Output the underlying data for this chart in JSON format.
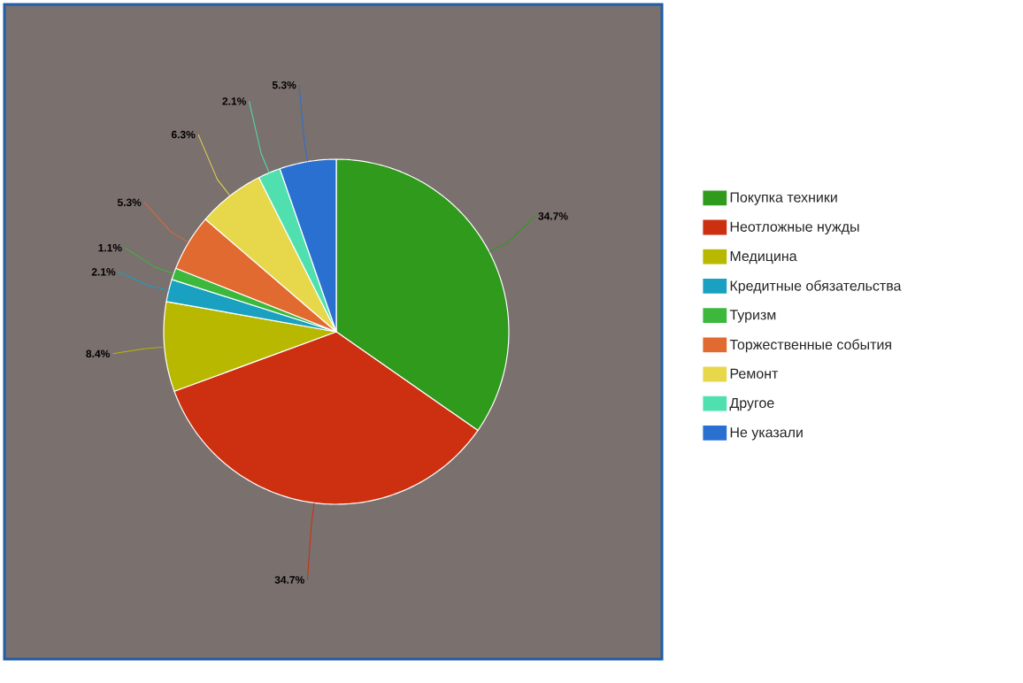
{
  "chart_data": {
    "type": "pie",
    "categories": [
      "Покупка техники",
      "Неотложные нужды",
      "Медицина",
      "Кредитные обязательства",
      "Туризм",
      "Торжественные события",
      "Ремонт",
      "Другое",
      "Не указали"
    ],
    "values": [
      34.7,
      34.7,
      8.4,
      2.1,
      1.1,
      5.3,
      6.3,
      2.1,
      5.3
    ],
    "value_labels": [
      "34.7%",
      "34.7%",
      "8.4%",
      "2.1%",
      "1.1%",
      "5.3%",
      "6.3%",
      "2.1%",
      "5.3%"
    ],
    "colors": [
      "#2f9a1c",
      "#cc3010",
      "#b8b800",
      "#1aa0c0",
      "#3cb83c",
      "#e06a30",
      "#e6d84a",
      "#50e0b0",
      "#2a70d0"
    ],
    "legend": "right"
  }
}
